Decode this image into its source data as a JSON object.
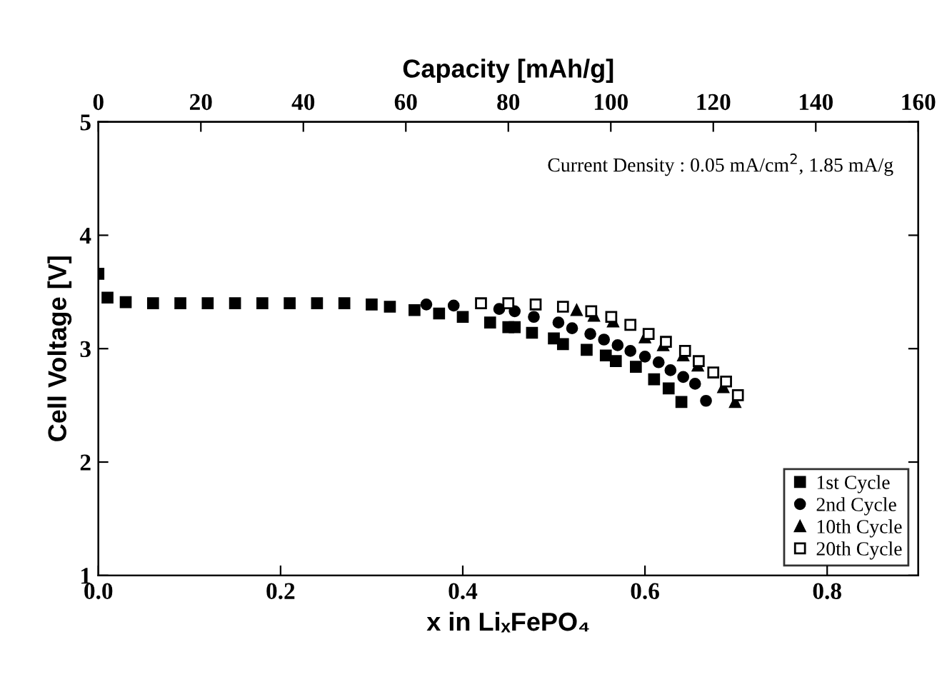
{
  "chart_data": {
    "type": "scatter",
    "xlabel": "x in LiₓFePO₄",
    "ylabel": "Cell Voltage [V]",
    "x2label": "Capacity [mAh/g]",
    "xlim": [
      0,
      0.9
    ],
    "xticks": [
      {
        "value": 0,
        "label": "0.0"
      },
      {
        "value": 0.2,
        "label": "0.2"
      },
      {
        "value": 0.4,
        "label": "0.4"
      },
      {
        "value": 0.6,
        "label": "0.6"
      },
      {
        "value": 0.8,
        "label": "0.8"
      }
    ],
    "x2lim": [
      0,
      160
    ],
    "x2ticks": [
      0,
      20,
      40,
      60,
      80,
      100,
      120,
      140,
      160
    ],
    "ylim": [
      1,
      5
    ],
    "yticks": [
      1,
      2,
      3,
      4,
      5
    ],
    "grid": false,
    "legend": "bottom right",
    "annotations": [
      "Current Density : 0.05 mA/cm$^{2}$, 1.85 mA/g"
    ],
    "series": [
      {
        "name": "1st Cycle",
        "color": "#000000",
        "marker": "square",
        "x": [
          0,
          0.01,
          0.03,
          0.06,
          0.09,
          0.12,
          0.15,
          0.18,
          0.21,
          0.24,
          0.27,
          0.3,
          0.32,
          0.347,
          0.374,
          0.4,
          0.43,
          0.45,
          0.457,
          0.476,
          0.5,
          0.51,
          0.536,
          0.557,
          0.568,
          0.59,
          0.61,
          0.626,
          0.64
        ],
        "values": [
          3.66,
          3.45,
          3.41,
          3.4,
          3.4,
          3.4,
          3.4,
          3.4,
          3.4,
          3.4,
          3.4,
          3.39,
          3.37,
          3.34,
          3.31,
          3.28,
          3.23,
          3.19,
          3.19,
          3.14,
          3.09,
          3.04,
          2.99,
          2.94,
          2.89,
          2.84,
          2.73,
          2.65,
          2.53
        ]
      },
      {
        "name": "2nd Cycle",
        "color": "#000000",
        "marker": "circle",
        "x": [
          0.36,
          0.39,
          0.42,
          0.44,
          0.457,
          0.478,
          0.505,
          0.52,
          0.54,
          0.555,
          0.57,
          0.584,
          0.6,
          0.615,
          0.628,
          0.642,
          0.655,
          0.667
        ],
        "values": [
          3.39,
          3.38,
          null,
          3.35,
          3.33,
          3.28,
          3.23,
          3.18,
          3.13,
          3.08,
          3.03,
          2.98,
          2.93,
          2.88,
          2.81,
          2.75,
          2.69,
          2.54
        ]
      },
      {
        "name": "10th Cycle",
        "color": "#000000",
        "marker": "triangle",
        "x": [
          0.525,
          0.544,
          0.565,
          0.58,
          0.6,
          0.62,
          0.642,
          0.658,
          0.673,
          0.686,
          0.699
        ],
        "values": [
          3.34,
          3.29,
          3.24,
          null,
          3.1,
          3.03,
          2.94,
          2.85,
          null,
          2.66,
          2.53
        ]
      },
      {
        "name": "20th Cycle",
        "color": "#000000",
        "marker": "square",
        "x": [
          0.42,
          0.45,
          0.48,
          0.51,
          0.541,
          0.563,
          0.584,
          0.604,
          0.623,
          0.644,
          0.659,
          0.675,
          0.689,
          0.702
        ],
        "values": [
          3.4,
          3.4,
          3.39,
          3.37,
          3.33,
          3.28,
          3.21,
          3.13,
          3.06,
          2.98,
          2.89,
          2.79,
          2.71,
          2.59
        ]
      }
    ]
  }
}
